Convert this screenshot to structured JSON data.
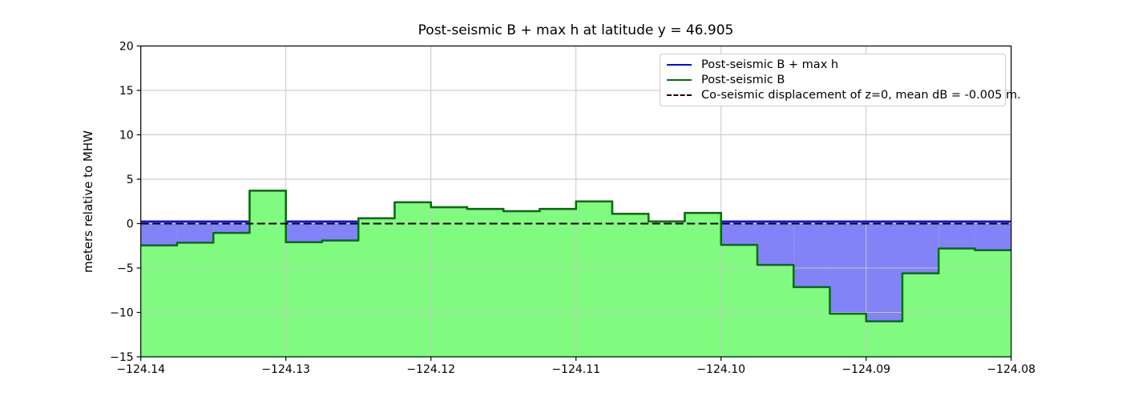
{
  "title": "Post-seismic B + max h at latitude y = 46.905",
  "legend": {
    "items": [
      {
        "label": "Post-seismic B + max h",
        "color": "#0000ee",
        "style": "solid"
      },
      {
        "label": "Post-seismic B",
        "color": "#007200",
        "style": "solid"
      },
      {
        "label": "Co-seismic displacement of z=0, mean dB = -0.005 m.",
        "color": "#000000",
        "style": "dashed"
      }
    ]
  },
  "colors": {
    "green_fill": "#80fb80",
    "purple_fill": "#8283f6",
    "blue_line": "#0000ee",
    "green_line": "#007200",
    "dashed_line": "#000000",
    "grid": "#c6c6c6",
    "spine": "#000000"
  },
  "chart_data": {
    "type": "area",
    "title": "Post-seismic B + max h at latitude y = 46.905",
    "xlabel": "",
    "ylabel": "meters relative to MHW",
    "xlim": [
      -124.14,
      -124.08
    ],
    "ylim": [
      -15,
      20
    ],
    "grid": true,
    "legend_position": "upper right",
    "xtick_values": [
      -124.14,
      -124.13,
      -124.12,
      -124.11,
      -124.1,
      -124.09,
      -124.08
    ],
    "xtick_labels": [
      "−124.14",
      "−124.13",
      "−124.12",
      "−124.11",
      "−124.10",
      "−124.09",
      "−124.08"
    ],
    "ytick_values": [
      -15,
      -10,
      -5,
      0,
      5,
      10,
      15,
      20
    ],
    "ytick_labels": [
      "−15",
      "−10",
      "−5",
      "0",
      "5",
      "10",
      "15",
      "20"
    ],
    "step_x_start": -124.14,
    "step_width": 0.0025,
    "series": [
      {
        "name": "Post-seismic B + max h",
        "description": "constant sea level 0.25 m where B < 0.25, equals B elsewhere",
        "sea_level": 0.25
      },
      {
        "name": "Post-seismic B",
        "values": [
          -2.45,
          -2.15,
          -1.05,
          3.7,
          -2.1,
          -1.9,
          0.6,
          2.4,
          1.85,
          1.65,
          1.4,
          1.65,
          2.5,
          1.1,
          0.25,
          1.2,
          -2.4,
          -4.65,
          -7.15,
          -10.15,
          -11.0,
          -5.6,
          -2.8,
          -3.0
        ]
      },
      {
        "name": "Co-seismic displacement of z=0, mean dB = -0.005 m.",
        "value": -0.005
      }
    ]
  }
}
